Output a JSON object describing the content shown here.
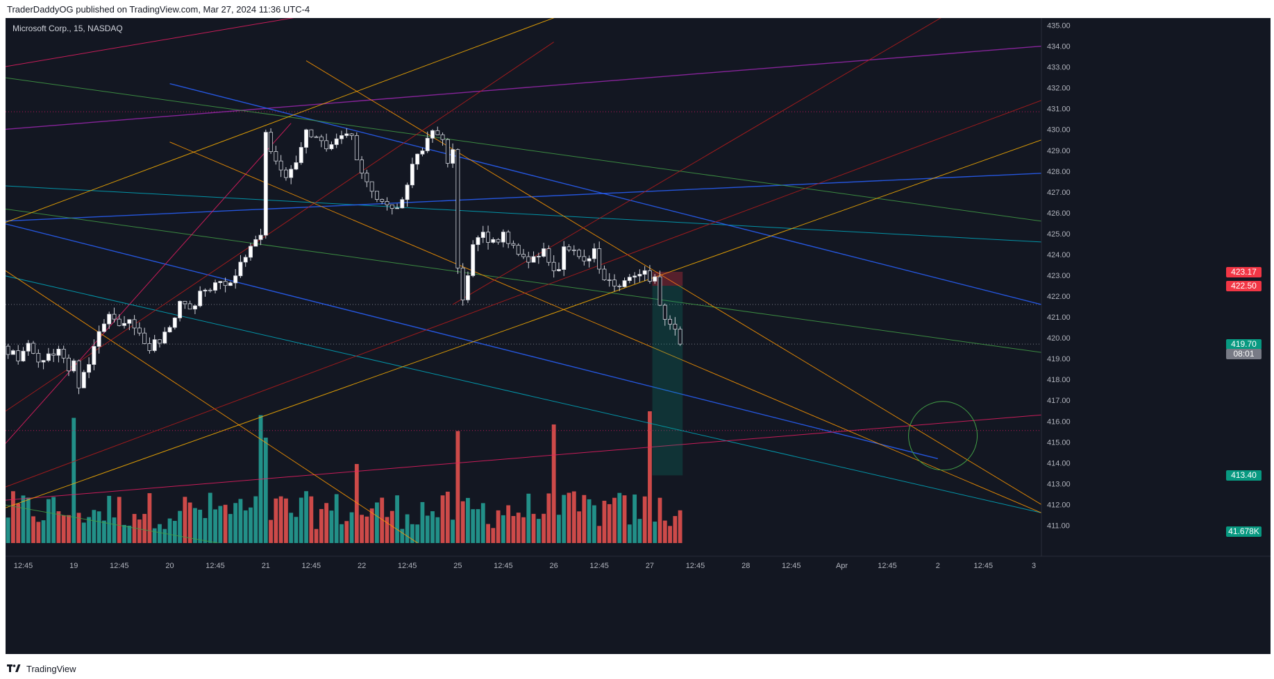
{
  "caption": "TraderDaddyOG published on TradingView.com, Mar 27, 2024 11:36 UTC-4",
  "footer": {
    "brand": "TradingView",
    "logo_icon": "tradingview-logo-icon"
  },
  "chart_data": {
    "type": "candlestick",
    "title": "Microsoft Corp., 15, NASDAQ",
    "ylim": [
      410.15,
      435.35
    ],
    "y_ticks": [
      411,
      412,
      413,
      414,
      415,
      416,
      417,
      418,
      419,
      420,
      421,
      422,
      423,
      424,
      425,
      426,
      427,
      428,
      429,
      430,
      431,
      432,
      433,
      434,
      435
    ],
    "x_tick_labels": [
      {
        "bar": 3,
        "label": "12:45"
      },
      {
        "bar": 13,
        "label": "19"
      },
      {
        "bar": 22,
        "label": "12:45"
      },
      {
        "bar": 32,
        "label": "20"
      },
      {
        "bar": 41,
        "label": "12:45"
      },
      {
        "bar": 51,
        "label": "21"
      },
      {
        "bar": 60,
        "label": "12:45"
      },
      {
        "bar": 70,
        "label": "22"
      },
      {
        "bar": 79,
        "label": "12:45"
      },
      {
        "bar": 89,
        "label": "25"
      },
      {
        "bar": 98,
        "label": "12:45"
      },
      {
        "bar": 108,
        "label": "26"
      },
      {
        "bar": 117,
        "label": "12:45"
      },
      {
        "bar": 127,
        "label": "27"
      },
      {
        "bar": 136,
        "label": "12:45"
      },
      {
        "bar": 146,
        "label": "28"
      },
      {
        "bar": 155,
        "label": "12:45"
      },
      {
        "bar": 165,
        "label": "Apr"
      },
      {
        "bar": 174,
        "label": "12:45"
      },
      {
        "bar": 184,
        "label": "2"
      },
      {
        "bar": 193,
        "label": "12:45"
      },
      {
        "bar": 203,
        "label": "3"
      }
    ],
    "x_bar_range": [
      -0.5,
      204.5
    ],
    "close_path": [
      [
        0,
        419.4
      ],
      [
        2,
        419.0
      ],
      [
        4,
        419.6
      ],
      [
        6,
        418.8
      ],
      [
        8,
        419.1
      ],
      [
        10,
        419.5
      ],
      [
        12,
        418.4
      ],
      [
        13,
        418.8
      ],
      [
        14,
        417.8
      ],
      [
        16,
        418.9
      ],
      [
        18,
        420.2
      ],
      [
        20,
        421.0
      ],
      [
        22,
        420.8
      ],
      [
        24,
        420.9
      ],
      [
        26,
        420.1
      ],
      [
        28,
        419.6
      ],
      [
        30,
        419.9
      ],
      [
        32,
        420.6
      ],
      [
        34,
        421.6
      ],
      [
        36,
        421.3
      ],
      [
        38,
        422.1
      ],
      [
        40,
        422.5
      ],
      [
        42,
        422.9
      ],
      [
        44,
        422.5
      ],
      [
        46,
        423.7
      ],
      [
        48,
        424.4
      ],
      [
        50,
        424.9
      ],
      [
        51,
        429.7
      ],
      [
        53,
        428.5
      ],
      [
        55,
        427.7
      ],
      [
        57,
        428.2
      ],
      [
        59,
        430.0
      ],
      [
        61,
        429.5
      ],
      [
        63,
        429.2
      ],
      [
        65,
        429.6
      ],
      [
        68,
        429.6
      ],
      [
        70,
        427.7
      ],
      [
        72,
        427.0
      ],
      [
        74,
        426.6
      ],
      [
        76,
        426.2
      ],
      [
        78,
        426.7
      ],
      [
        80,
        428.3
      ],
      [
        82,
        429.0
      ],
      [
        84,
        429.9
      ],
      [
        86,
        429.6
      ],
      [
        87,
        428.5
      ],
      [
        88,
        428.9
      ],
      [
        89,
        423.2
      ],
      [
        90,
        422.0
      ],
      [
        92,
        424.3
      ],
      [
        94,
        425.0
      ],
      [
        96,
        424.6
      ],
      [
        98,
        424.9
      ],
      [
        100,
        424.4
      ],
      [
        102,
        423.7
      ],
      [
        104,
        423.9
      ],
      [
        106,
        424.1
      ],
      [
        108,
        423.0
      ],
      [
        109,
        423.5
      ],
      [
        110,
        424.3
      ],
      [
        112,
        424.0
      ],
      [
        114,
        423.6
      ],
      [
        116,
        424.1
      ],
      [
        118,
        422.8
      ],
      [
        120,
        422.6
      ],
      [
        122,
        422.7
      ],
      [
        124,
        423.1
      ],
      [
        126,
        423.4
      ],
      [
        127,
        422.6
      ],
      [
        128,
        423.0
      ],
      [
        129,
        421.6
      ],
      [
        130,
        420.7
      ],
      [
        132,
        420.4
      ],
      [
        133,
        419.7
      ]
    ],
    "volume_bar_count": 134,
    "last_volume": "41.678K",
    "price_labels": [
      {
        "value": 423.17,
        "label": "423.17",
        "color": "#f23645"
      },
      {
        "value": 422.5,
        "label": "422.50",
        "color": "#f23645"
      },
      {
        "value": 419.7,
        "label": "419.70",
        "color": "#089981"
      },
      {
        "value": 413.4,
        "label": "413.40",
        "color": "#089981"
      }
    ],
    "countdown": "08:01",
    "volume_label_color": "#089981",
    "horizontal_levels": [
      {
        "value": 430.85,
        "color": "#c2185b"
      },
      {
        "value": 421.6,
        "color": "#787b86"
      },
      {
        "value": 419.7,
        "color": "#787b86"
      },
      {
        "value": 415.55,
        "color": "#c2185b"
      }
    ],
    "trend_lines": [
      {
        "from": [
          -1,
          423.0
        ],
        "to": [
          204.5,
          411.6
        ],
        "color": "#00acc1"
      },
      {
        "from": [
          -1,
          427.3
        ],
        "to": [
          204.5,
          424.6
        ],
        "color": "#00acc1"
      },
      {
        "from": [
          -1,
          425.6
        ],
        "to": [
          204.5,
          427.9
        ],
        "color": "#2962ff"
      },
      {
        "from": [
          -1,
          430.0
        ],
        "to": [
          204.5,
          434.0
        ],
        "color": "#9c27b0"
      },
      {
        "from": [
          32,
          432.2
        ],
        "to": [
          204.5,
          421.6
        ],
        "color": "#2962ff"
      },
      {
        "from": [
          -1,
          425.5
        ],
        "to": [
          184,
          414.2
        ],
        "color": "#2962ff"
      },
      {
        "from": [
          -1,
          432.5
        ],
        "to": [
          204.5,
          425.6
        ],
        "color": "#43a047"
      },
      {
        "from": [
          -1,
          426.2
        ],
        "to": [
          204.5,
          419.3
        ],
        "color": "#43a047"
      },
      {
        "from": [
          -1,
          412.2
        ],
        "to": [
          204.5,
          416.3
        ],
        "color": "#e91e63"
      },
      {
        "from": [
          -1,
          414.8
        ],
        "to": [
          56,
          430.3
        ],
        "color": "#e91e63"
      },
      {
        "from": [
          -1,
          433.0
        ],
        "to": [
          72,
          436.0
        ],
        "color": "#e91e63"
      },
      {
        "from": [
          -1,
          411.8
        ],
        "to": [
          204.5,
          429.5
        ],
        "color": "#ffb300"
      },
      {
        "from": [
          -1,
          425.5
        ],
        "to": [
          114,
          435.9
        ],
        "color": "#ffb300"
      },
      {
        "from": [
          32,
          429.4
        ],
        "to": [
          204.5,
          411.6
        ],
        "color": "#ff9800"
      },
      {
        "from": [
          59,
          433.3
        ],
        "to": [
          204.5,
          412.0
        ],
        "color": "#ff9800"
      },
      {
        "from": [
          -1,
          423.3
        ],
        "to": [
          82,
          410.0
        ],
        "color": "#ff9800"
      },
      {
        "from": [
          -1,
          416.4
        ],
        "to": [
          108,
          434.2
        ],
        "color": "#b71c1c"
      },
      {
        "from": [
          88,
          421.6
        ],
        "to": [
          187,
          435.7
        ],
        "color": "#b71c1c"
      },
      {
        "from": [
          -1,
          412.8
        ],
        "to": [
          204.5,
          431.4
        ],
        "color": "#b71c1c"
      },
      {
        "from": [
          -1,
          412.0
        ],
        "to": [
          91,
          408.0
        ],
        "color": "#43a047"
      }
    ],
    "position_box": {
      "bar_start": 128,
      "bar_end": 133,
      "entry": 422.5,
      "stop": 423.17,
      "target": 413.4
    },
    "circle": {
      "center_bar": 185,
      "center_price": 415.3,
      "radius_bars": 6.8
    }
  }
}
